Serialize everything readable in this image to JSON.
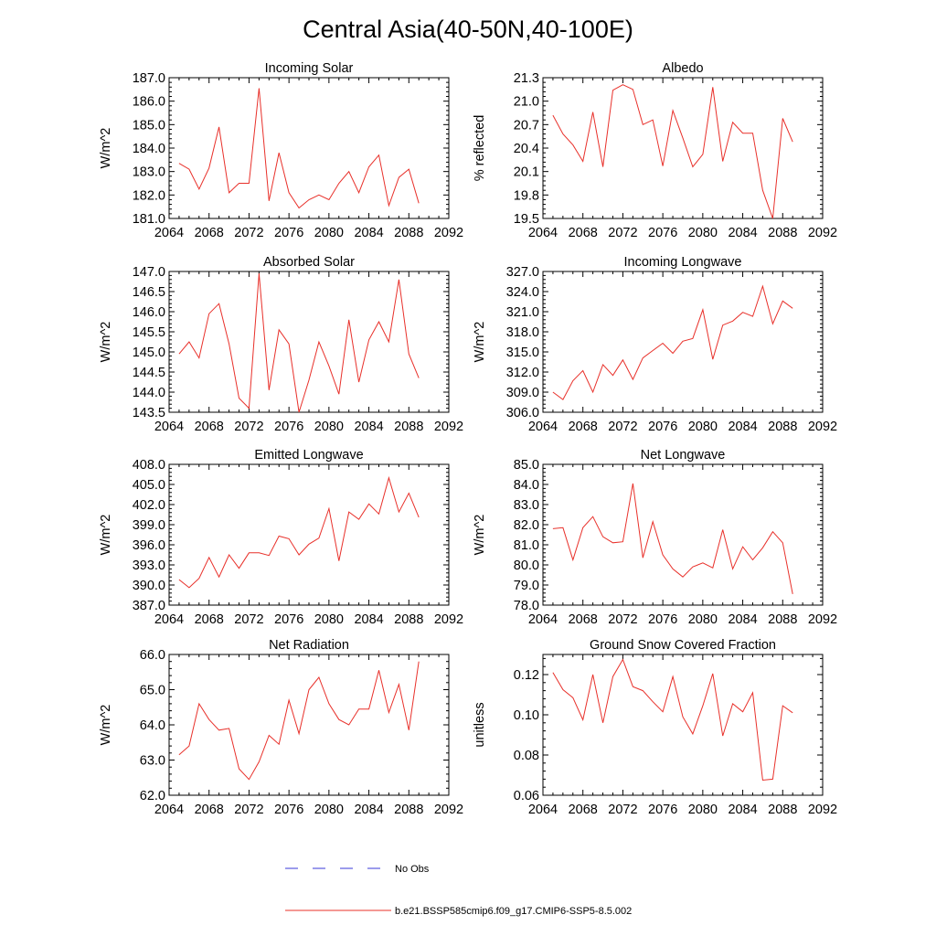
{
  "figure": {
    "title": "Central Asia(40-50N,40-100E)",
    "legend": [
      {
        "label": "No Obs",
        "style": "dashed",
        "color": "#3a3ad8"
      },
      {
        "label": "b.e21.BSSP585cmip6.f09_g17.CMIP6-SSP5-8.5.002",
        "style": "solid",
        "color": "#e8302a"
      }
    ]
  },
  "chart_data": [
    {
      "type": "line",
      "title": "Incoming Solar",
      "xlabel": "",
      "ylabel": "W/m^2",
      "xlim": [
        2064,
        2092
      ],
      "ylim": [
        181.0,
        187.0
      ],
      "xticks": [
        "2064",
        "2068",
        "2072",
        "2076",
        "2080",
        "2084",
        "2088",
        "2092"
      ],
      "yticks": [
        "181.0",
        "182.0",
        "183.0",
        "184.0",
        "185.0",
        "186.0",
        "187.0"
      ],
      "series": [
        {
          "name": "b.e21.BSSP585cmip6.f09_g17.CMIP6-SSP5-8.5.002",
          "color": "#e8302a",
          "x": [
            2065,
            2066,
            2067,
            2068,
            2069,
            2070,
            2071,
            2072,
            2073,
            2074,
            2075,
            2076,
            2077,
            2078,
            2079,
            2080,
            2081,
            2082,
            2083,
            2084,
            2085,
            2086,
            2087,
            2088,
            2089
          ],
          "values": [
            183.35,
            183.1,
            182.25,
            183.15,
            184.9,
            182.1,
            182.5,
            182.5,
            186.55,
            181.75,
            183.8,
            182.1,
            181.45,
            181.8,
            182.0,
            181.8,
            182.5,
            183.0,
            182.1,
            183.2,
            183.7,
            181.55,
            182.75,
            183.1,
            181.65
          ]
        }
      ]
    },
    {
      "type": "line",
      "title": "Albedo",
      "xlabel": "",
      "ylabel": "% reflected",
      "xlim": [
        2064,
        2092
      ],
      "ylim": [
        19.5,
        21.3
      ],
      "xticks": [
        "2064",
        "2068",
        "2072",
        "2076",
        "2080",
        "2084",
        "2088",
        "2092"
      ],
      "yticks": [
        "19.5",
        "19.8",
        "20.1",
        "20.4",
        "20.7",
        "21.0",
        "21.3"
      ],
      "series": [
        {
          "name": "b.e21.BSSP585cmip6.f09_g17.CMIP6-SSP5-8.5.002",
          "color": "#e8302a",
          "x": [
            2065,
            2066,
            2067,
            2068,
            2069,
            2070,
            2071,
            2072,
            2073,
            2074,
            2075,
            2076,
            2077,
            2078,
            2079,
            2080,
            2081,
            2082,
            2083,
            2084,
            2085,
            2086,
            2087,
            2088,
            2089
          ],
          "values": [
            20.82,
            20.58,
            20.44,
            20.23,
            20.86,
            20.16,
            21.14,
            21.21,
            21.15,
            20.7,
            20.76,
            20.17,
            20.88,
            20.53,
            20.16,
            20.32,
            21.18,
            20.23,
            20.73,
            20.59,
            20.59,
            19.86,
            19.5,
            20.78,
            20.48
          ]
        }
      ]
    },
    {
      "type": "line",
      "title": "Absorbed Solar",
      "xlabel": "",
      "ylabel": "W/m^2",
      "xlim": [
        2064,
        2092
      ],
      "ylim": [
        143.5,
        147.0
      ],
      "xticks": [
        "2064",
        "2068",
        "2072",
        "2076",
        "2080",
        "2084",
        "2088",
        "2092"
      ],
      "yticks": [
        "143.5",
        "144.0",
        "144.5",
        "145.0",
        "145.5",
        "146.0",
        "146.5",
        "147.0"
      ],
      "series": [
        {
          "name": "b.e21.BSSP585cmip6.f09_g17.CMIP6-SSP5-8.5.002",
          "color": "#e8302a",
          "x": [
            2065,
            2066,
            2067,
            2068,
            2069,
            2070,
            2071,
            2072,
            2073,
            2074,
            2075,
            2076,
            2077,
            2078,
            2079,
            2080,
            2081,
            2082,
            2083,
            2084,
            2085,
            2086,
            2087,
            2088,
            2089
          ],
          "values": [
            144.95,
            145.25,
            144.85,
            145.95,
            146.2,
            145.2,
            143.85,
            143.6,
            146.95,
            144.05,
            145.55,
            145.2,
            143.5,
            144.3,
            145.25,
            144.65,
            143.95,
            145.8,
            144.25,
            145.3,
            145.75,
            145.25,
            146.8,
            144.95,
            144.35
          ]
        }
      ]
    },
    {
      "type": "line",
      "title": "Incoming Longwave",
      "xlabel": "",
      "ylabel": "W/m^2",
      "xlim": [
        2064,
        2092
      ],
      "ylim": [
        306.0,
        327.0
      ],
      "xticks": [
        "2064",
        "2068",
        "2072",
        "2076",
        "2080",
        "2084",
        "2088",
        "2092"
      ],
      "yticks": [
        "306.0",
        "309.0",
        "312.0",
        "315.0",
        "318.0",
        "321.0",
        "324.0",
        "327.0"
      ],
      "series": [
        {
          "name": "b.e21.BSSP585cmip6.f09_g17.CMIP6-SSP5-8.5.002",
          "color": "#e8302a",
          "x": [
            2065,
            2066,
            2067,
            2068,
            2069,
            2070,
            2071,
            2072,
            2073,
            2074,
            2075,
            2076,
            2077,
            2078,
            2079,
            2080,
            2081,
            2082,
            2083,
            2084,
            2085,
            2086,
            2087,
            2088,
            2089
          ],
          "values": [
            309.0,
            307.9,
            310.7,
            312.2,
            309.0,
            313.1,
            311.5,
            313.8,
            310.9,
            314.1,
            315.2,
            316.3,
            314.8,
            316.6,
            317.0,
            321.3,
            313.9,
            319.0,
            319.6,
            320.9,
            320.3,
            324.8,
            319.2,
            322.6,
            321.5
          ]
        }
      ]
    },
    {
      "type": "line",
      "title": "Emitted Longwave",
      "xlabel": "",
      "ylabel": "W/m^2",
      "xlim": [
        2064,
        2092
      ],
      "ylim": [
        387.0,
        408.0
      ],
      "xticks": [
        "2064",
        "2068",
        "2072",
        "2076",
        "2080",
        "2084",
        "2088",
        "2092"
      ],
      "yticks": [
        "387.0",
        "390.0",
        "393.0",
        "396.0",
        "399.0",
        "402.0",
        "405.0",
        "408.0"
      ],
      "series": [
        {
          "name": "b.e21.BSSP585cmip6.f09_g17.CMIP6-SSP5-8.5.002",
          "color": "#e8302a",
          "x": [
            2065,
            2066,
            2067,
            2068,
            2069,
            2070,
            2071,
            2072,
            2073,
            2074,
            2075,
            2076,
            2077,
            2078,
            2079,
            2080,
            2081,
            2082,
            2083,
            2084,
            2085,
            2086,
            2087,
            2088,
            2089
          ],
          "values": [
            390.8,
            389.6,
            391.0,
            394.1,
            391.2,
            394.5,
            392.5,
            394.8,
            394.8,
            394.4,
            397.3,
            396.9,
            394.5,
            396.1,
            397.0,
            401.4,
            393.6,
            400.9,
            399.8,
            402.1,
            400.6,
            406.0,
            400.9,
            403.7,
            400.1
          ]
        }
      ]
    },
    {
      "type": "line",
      "title": "Net Longwave",
      "xlabel": "",
      "ylabel": "W/m^2",
      "xlim": [
        2064,
        2092
      ],
      "ylim": [
        78.0,
        85.0
      ],
      "xticks": [
        "2064",
        "2068",
        "2072",
        "2076",
        "2080",
        "2084",
        "2088",
        "2092"
      ],
      "yticks": [
        "78.0",
        "79.0",
        "80.0",
        "81.0",
        "82.0",
        "83.0",
        "84.0",
        "85.0"
      ],
      "series": [
        {
          "name": "b.e21.BSSP585cmip6.f09_g17.CMIP6-SSP5-8.5.002",
          "color": "#e8302a",
          "x": [
            2065,
            2066,
            2067,
            2068,
            2069,
            2070,
            2071,
            2072,
            2073,
            2074,
            2075,
            2076,
            2077,
            2078,
            2079,
            2080,
            2081,
            2082,
            2083,
            2084,
            2085,
            2086,
            2087,
            2088,
            2089
          ],
          "values": [
            81.8,
            81.85,
            80.25,
            81.85,
            82.4,
            81.4,
            81.1,
            81.15,
            84.05,
            80.35,
            82.15,
            80.5,
            79.8,
            79.4,
            79.9,
            80.1,
            79.85,
            81.75,
            79.8,
            80.9,
            80.25,
            80.85,
            81.65,
            81.1,
            78.55
          ]
        }
      ]
    },
    {
      "type": "line",
      "title": "Net Radiation",
      "xlabel": "",
      "ylabel": "W/m^2",
      "xlim": [
        2064,
        2092
      ],
      "ylim": [
        62.0,
        66.0
      ],
      "xticks": [
        "2064",
        "2068",
        "2072",
        "2076",
        "2080",
        "2084",
        "2088",
        "2092"
      ],
      "yticks": [
        "62.0",
        "63.0",
        "64.0",
        "65.0",
        "66.0"
      ],
      "series": [
        {
          "name": "b.e21.BSSP585cmip6.f09_g17.CMIP6-SSP5-8.5.002",
          "color": "#e8302a",
          "x": [
            2065,
            2066,
            2067,
            2068,
            2069,
            2070,
            2071,
            2072,
            2073,
            2074,
            2075,
            2076,
            2077,
            2078,
            2079,
            2080,
            2081,
            2082,
            2083,
            2084,
            2085,
            2086,
            2087,
            2088,
            2089
          ],
          "values": [
            63.15,
            63.4,
            64.6,
            64.15,
            63.85,
            63.9,
            62.75,
            62.45,
            62.95,
            63.7,
            63.45,
            64.7,
            63.75,
            65.0,
            65.35,
            64.6,
            64.15,
            64.0,
            64.45,
            64.45,
            65.55,
            64.35,
            65.15,
            63.85,
            65.8
          ]
        }
      ]
    },
    {
      "type": "line",
      "title": "Ground Snow Covered Fraction",
      "xlabel": "",
      "ylabel": "unitless",
      "xlim": [
        2064,
        2092
      ],
      "ylim": [
        0.06,
        0.13
      ],
      "xticks": [
        "2064",
        "2068",
        "2072",
        "2076",
        "2080",
        "2084",
        "2088",
        "2092"
      ],
      "yticks": [
        "0.06",
        "0.08",
        "0.10",
        "0.12"
      ],
      "series": [
        {
          "name": "b.e21.BSSP585cmip6.f09_g17.CMIP6-SSP5-8.5.002",
          "color": "#e8302a",
          "x": [
            2065,
            2066,
            2067,
            2068,
            2069,
            2070,
            2071,
            2072,
            2073,
            2074,
            2075,
            2076,
            2077,
            2078,
            2079,
            2080,
            2081,
            2082,
            2083,
            2084,
            2085,
            2086,
            2087,
            2088,
            2089
          ],
          "values": [
            0.121,
            0.1125,
            0.1085,
            0.0975,
            0.12,
            0.096,
            0.119,
            0.1275,
            0.114,
            0.112,
            0.1065,
            0.1015,
            0.119,
            0.099,
            0.0905,
            0.1045,
            0.1205,
            0.0895,
            0.1055,
            0.1015,
            0.111,
            0.0675,
            0.068,
            0.1045,
            0.101
          ]
        }
      ]
    }
  ]
}
